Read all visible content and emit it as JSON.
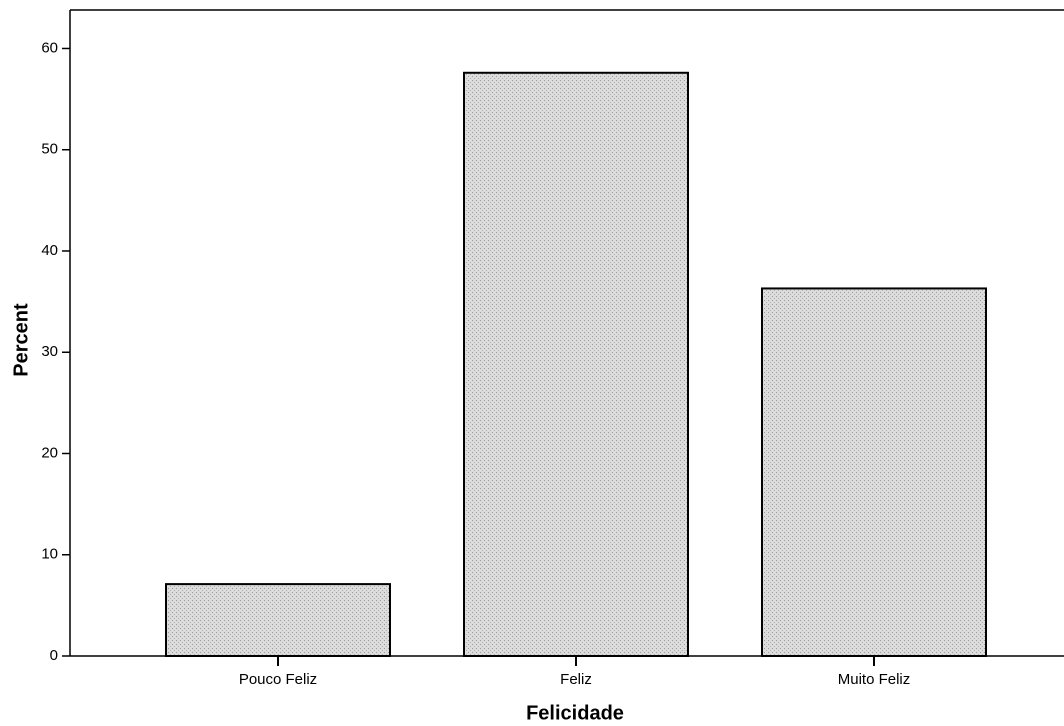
{
  "chart_data": {
    "type": "bar",
    "x_label": "Felicidade",
    "y_label": "Percent",
    "categories": [
      "Pouco Feliz",
      "Feliz",
      "Muito Feliz"
    ],
    "values": [
      7.1,
      57.6,
      36.3
    ],
    "color": "#d9d9d9",
    "ylim": [
      0,
      63.8
    ],
    "yticks": [
      0,
      10,
      20,
      30,
      40,
      50,
      60
    ],
    "grid": false
  }
}
